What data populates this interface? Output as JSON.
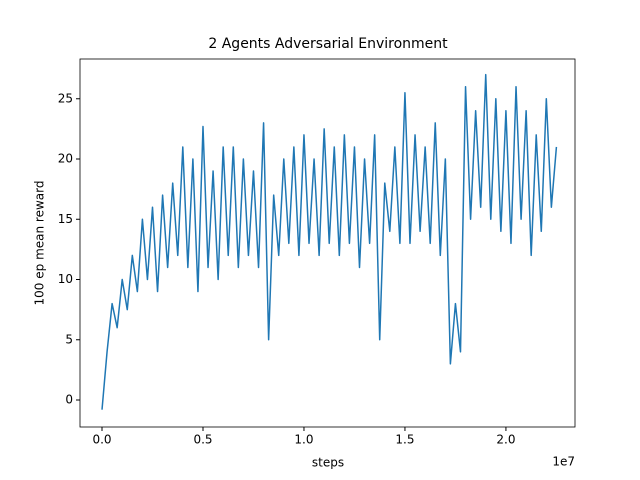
{
  "chart_data": {
    "type": "line",
    "title": "2 Agents Adversarial Environment",
    "xlabel": "steps",
    "ylabel": "100 ep mean reward",
    "x_offset_label": "1e7",
    "color": "#1f77b4",
    "x": [
      0,
      250000,
      500000,
      750000,
      1000000,
      1250000,
      1500000,
      1750000,
      2000000,
      2250000,
      2500000,
      2750000,
      3000000,
      3250000,
      3500000,
      3750000,
      4000000,
      4250000,
      4500000,
      4750000,
      5000000,
      5250000,
      5500000,
      5750000,
      6000000,
      6250000,
      6500000,
      6750000,
      7000000,
      7250000,
      7500000,
      7750000,
      8000000,
      8250000,
      8500000,
      8750000,
      9000000,
      9250000,
      9500000,
      9750000,
      10000000,
      10250000,
      10500000,
      10750000,
      11000000,
      11250000,
      11500000,
      11750000,
      12000000,
      12250000,
      12500000,
      12750000,
      13000000,
      13250000,
      13500000,
      13750000,
      14000000,
      14250000,
      14500000,
      14750000,
      15000000,
      15250000,
      15500000,
      15750000,
      16000000,
      16250000,
      16500000,
      16750000,
      17000000,
      17250000,
      17500000,
      17750000,
      18000000,
      18250000,
      18500000,
      18750000,
      19000000,
      19250000,
      19500000,
      19750000,
      20000000,
      20250000,
      20500000,
      20750000,
      21000000,
      21250000,
      21500000,
      21750000,
      22000000,
      22250000,
      22500000
    ],
    "values": [
      -0.8,
      4,
      8,
      6,
      10,
      7.5,
      12,
      9,
      15,
      10,
      16,
      9,
      17,
      11,
      18,
      12,
      21,
      11,
      20,
      9,
      22.7,
      11,
      19,
      10,
      21,
      12,
      21,
      11,
      20,
      12,
      19,
      11,
      23,
      5,
      17,
      12,
      20,
      13,
      21,
      12,
      22,
      13,
      20,
      12,
      22.5,
      13,
      21,
      12,
      22,
      13,
      21,
      11,
      20,
      13,
      22,
      5,
      18,
      14,
      21,
      13,
      25.5,
      13,
      22,
      14,
      21,
      13,
      23,
      12,
      20,
      3,
      8,
      4,
      26,
      15,
      24,
      16,
      27,
      15,
      25,
      14,
      24,
      13,
      26,
      15,
      24,
      12,
      22,
      14,
      25,
      16,
      21
    ],
    "xlim": [
      -1090000,
      23420000
    ],
    "ylim": [
      -2.24,
      28.3
    ],
    "xticks": [
      {
        "value": 0,
        "label": "0.0"
      },
      {
        "value": 5000000,
        "label": "0.5"
      },
      {
        "value": 10000000,
        "label": "1.0"
      },
      {
        "value": 15000000,
        "label": "1.5"
      },
      {
        "value": 20000000,
        "label": "2.0"
      }
    ],
    "yticks": [
      0,
      5,
      10,
      15,
      20,
      25
    ]
  }
}
